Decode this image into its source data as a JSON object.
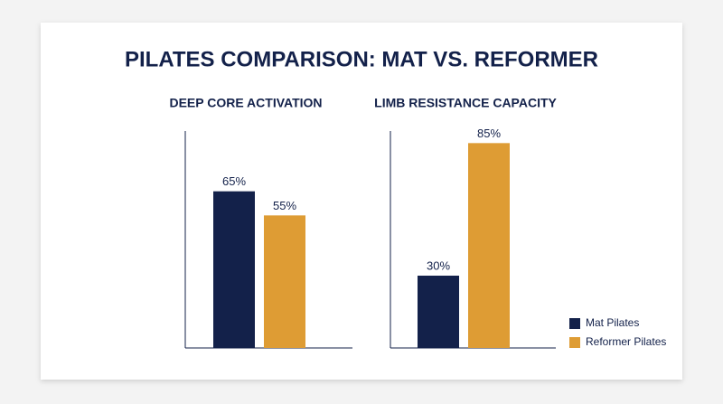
{
  "title": "PILATES COMPARISON: MAT VS. REFORMER",
  "series": [
    {
      "name": "Mat Pilates",
      "color": "#13214a"
    },
    {
      "name": "Reformer Pilates",
      "color": "#de9c34"
    }
  ],
  "chart_data": [
    {
      "type": "bar",
      "title": "DEEP CORE ACTIVATION",
      "values": [
        65,
        55
      ],
      "value_labels": [
        "65%",
        "55%"
      ],
      "ylim": [
        0,
        90
      ]
    },
    {
      "type": "bar",
      "title": "LIMB RESISTANCE CAPACITY",
      "values": [
        30,
        85
      ],
      "value_labels": [
        "30%",
        "85%"
      ],
      "ylim": [
        0,
        90
      ]
    }
  ]
}
